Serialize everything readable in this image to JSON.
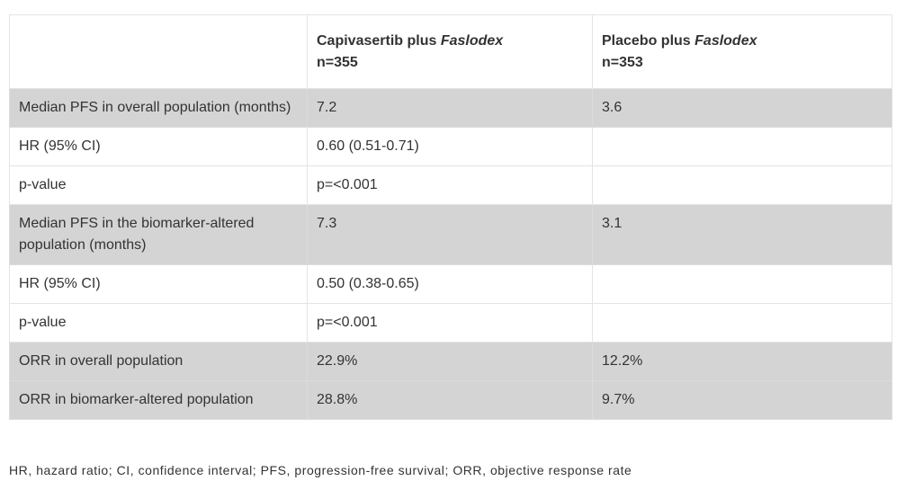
{
  "table": {
    "header": {
      "col1": "",
      "col2": {
        "prefix": "Capivasertib plus ",
        "drug": "Faslodex",
        "n": "n=355"
      },
      "col3": {
        "prefix": "Placebo plus ",
        "drug": "Faslodex",
        "n": "n=353"
      }
    },
    "rows": [
      {
        "label": "Median PFS in overall population (months)",
        "arm1": "7.2",
        "arm2": "3.6"
      },
      {
        "label": "HR (95% CI)",
        "arm1": "0.60 (0.51-0.71)",
        "arm2": ""
      },
      {
        "label": "p-value",
        "arm1": "p=<0.001",
        "arm2": ""
      },
      {
        "label": "Median PFS in the biomarker-altered population (months)",
        "arm1": "7.3",
        "arm2": "3.1"
      },
      {
        "label": "HR (95% CI)",
        "arm1": "0.50 (0.38-0.65)",
        "arm2": ""
      },
      {
        "label": "p-value",
        "arm1": "p=<0.001",
        "arm2": ""
      },
      {
        "label": "ORR in overall population",
        "arm1": "22.9%",
        "arm2": "12.2%"
      },
      {
        "label": "ORR in biomarker-altered population",
        "arm1": "28.8%",
        "arm2": "9.7%"
      }
    ]
  },
  "footnote": "HR, hazard ratio; CI, confidence interval; PFS, progression-free survival; ORR, objective response rate"
}
